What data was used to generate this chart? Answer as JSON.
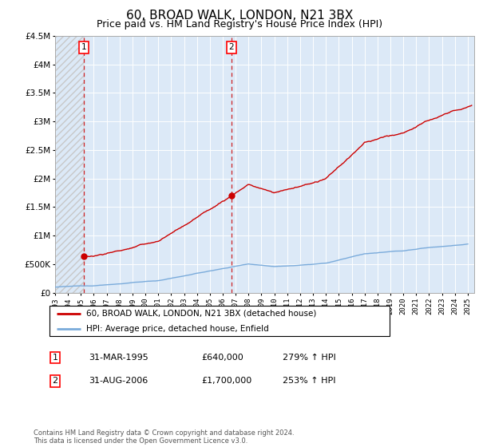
{
  "title": "60, BROAD WALK, LONDON, N21 3BX",
  "subtitle": "Price paid vs. HM Land Registry's House Price Index (HPI)",
  "legend_line1": "60, BROAD WALK, LONDON, N21 3BX (detached house)",
  "legend_line2": "HPI: Average price, detached house, Enfield",
  "footnote": "Contains HM Land Registry data © Crown copyright and database right 2024.\nThis data is licensed under the Open Government Licence v3.0.",
  "sale1_label": "1",
  "sale1_date": "31-MAR-1995",
  "sale1_price": "£640,000",
  "sale1_hpi": "279% ↑ HPI",
  "sale2_label": "2",
  "sale2_date": "31-AUG-2006",
  "sale2_price": "£1,700,000",
  "sale2_hpi": "253% ↑ HPI",
  "sale1_x": 1995.25,
  "sale1_y": 640000,
  "sale2_x": 2006.67,
  "sale2_y": 1700000,
  "ylim": [
    0,
    4500000
  ],
  "xlim": [
    1993.0,
    2025.5
  ],
  "background_color": "#dce9f7",
  "hatch_color": "#c8c8c8",
  "grid_color": "#ffffff",
  "red_line_color": "#cc0000",
  "blue_line_color": "#7aabdb",
  "title_fontsize": 11,
  "subtitle_fontsize": 9,
  "ytick_labels": [
    "£0",
    "£500K",
    "£1M",
    "£1.5M",
    "£2M",
    "£2.5M",
    "£3M",
    "£3.5M",
    "£4M",
    "£4.5M"
  ],
  "ytick_values": [
    0,
    500000,
    1000000,
    1500000,
    2000000,
    2500000,
    3000000,
    3500000,
    4000000,
    4500000
  ]
}
